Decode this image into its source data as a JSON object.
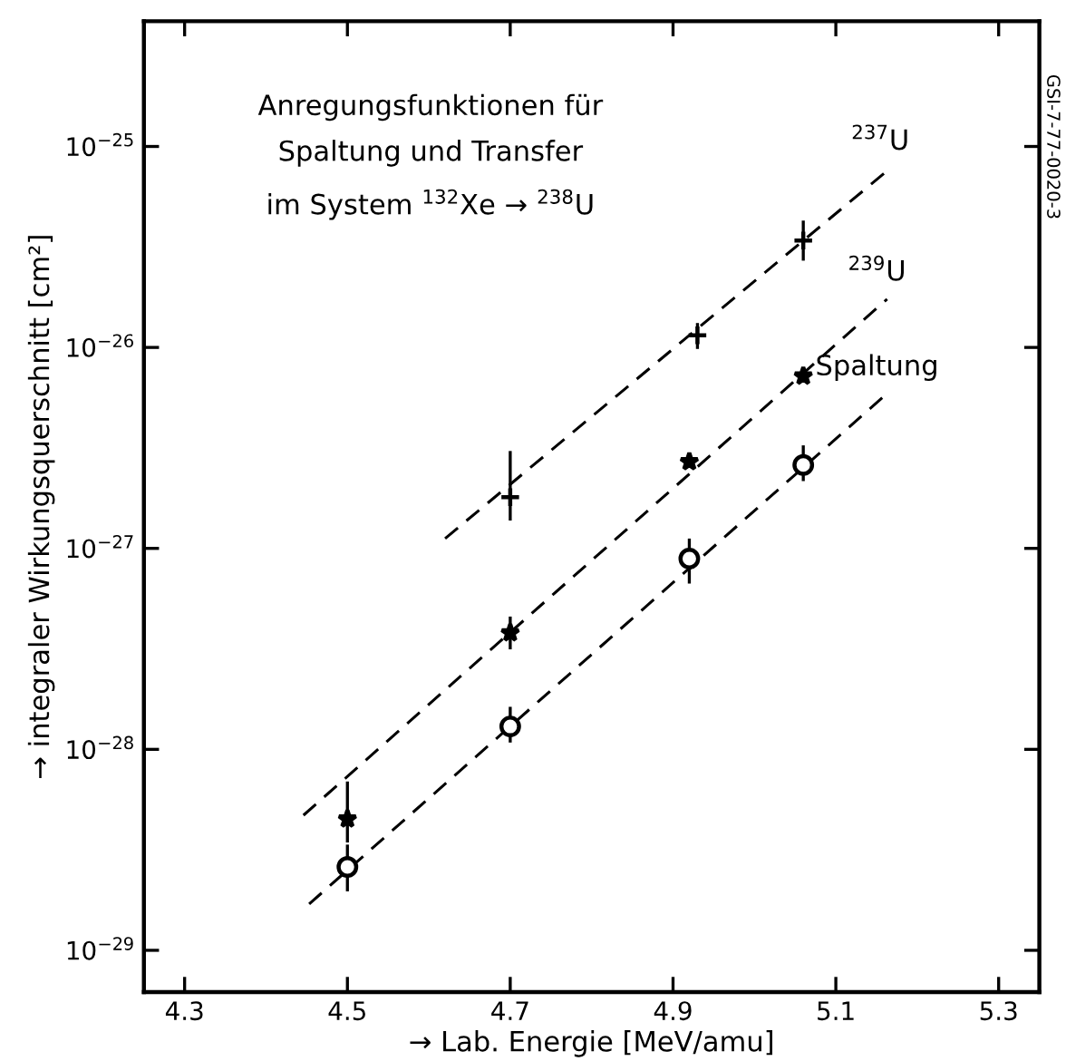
{
  "chart_data": {
    "type": "scatter",
    "title": "Anregungsfunktionen für\nSpaltung und Transfer\nim System $^{132}$Xe → $^{238}$U",
    "xlabel": "→ Lab. Energie [MeV/amu]",
    "ylabel": "→ integraler Wirkungsquerschnitt [cm²]",
    "annotations": [
      "GSI-7-77-0020-3"
    ],
    "log": "y",
    "grid": false,
    "legend": false,
    "xlim": [
      4.25,
      5.35
    ],
    "xticks": [
      4.3,
      4.5,
      4.7,
      4.9,
      5.1,
      5.3
    ],
    "ylim": [
      6.2e-30,
      4.2e-25
    ],
    "yticks": [
      {
        "value": 1e-29,
        "label": "10$^{−29}$"
      },
      {
        "value": 1e-28,
        "label": "10$^{−28}$"
      },
      {
        "value": 1e-27,
        "label": "10$^{−27}$"
      },
      {
        "value": 1e-26,
        "label": "10$^{−26}$"
      },
      {
        "value": 1e-25,
        "label": "10$^{−25}$"
      }
    ],
    "series": [
      {
        "name": "$^{237}$U",
        "type": "line",
        "color": "#000000",
        "line_style": "dashed",
        "marker": "none",
        "x": [
          4.62,
          5.167
        ],
        "values": [
          1.12e-27,
          7.8e-26
        ]
      },
      {
        "name": "$^{239}$U",
        "type": "line",
        "color": "#000000",
        "line_style": "dashed",
        "marker": "none",
        "x": [
          4.446,
          5.163
        ],
        "values": [
          4.7e-29,
          1.74e-26
        ]
      },
      {
        "name": "Spaltung",
        "type": "line",
        "color": "#000000",
        "line_style": "dashed",
        "marker": "none",
        "x": [
          4.453,
          5.163
        ],
        "values": [
          1.7e-29,
          5.9e-27
        ]
      },
      {
        "color": "#000000",
        "marker": "cross",
        "x": [
          4.7,
          4.93,
          5.06
        ],
        "values": [
          1.8e-27,
          1.15e-26,
          3.4e-26
        ],
        "errors": [
          [
            1.4e-27,
            3e-27
          ],
          [
            1e-26,
            1.3e-26
          ],
          [
            2.75e-26,
            4.2e-26
          ]
        ]
      },
      {
        "color": "#000000",
        "marker": "star",
        "x": [
          4.5,
          4.7,
          4.92,
          5.06
        ],
        "values": [
          4.5e-29,
          3.8e-28,
          2.7e-27,
          7.2e-27
        ],
        "errors": [
          [
            3.5e-29,
            6.8e-29
          ],
          [
            3.2e-28,
            4.5e-28
          ],
          null,
          null
        ]
      },
      {
        "color": "#000000",
        "marker": "circle",
        "x": [
          4.5,
          4.7,
          4.92,
          5.06
        ],
        "values": [
          2.6e-29,
          1.3e-28,
          8.9e-28,
          2.6e-27
        ],
        "errors": [
          [
            2e-29,
            3.3e-29
          ],
          [
            1.1e-28,
            1.6e-28
          ],
          [
            6.8e-28,
            1.1e-27
          ],
          [
            2.2e-27,
            3.2e-27
          ]
        ]
      }
    ]
  }
}
